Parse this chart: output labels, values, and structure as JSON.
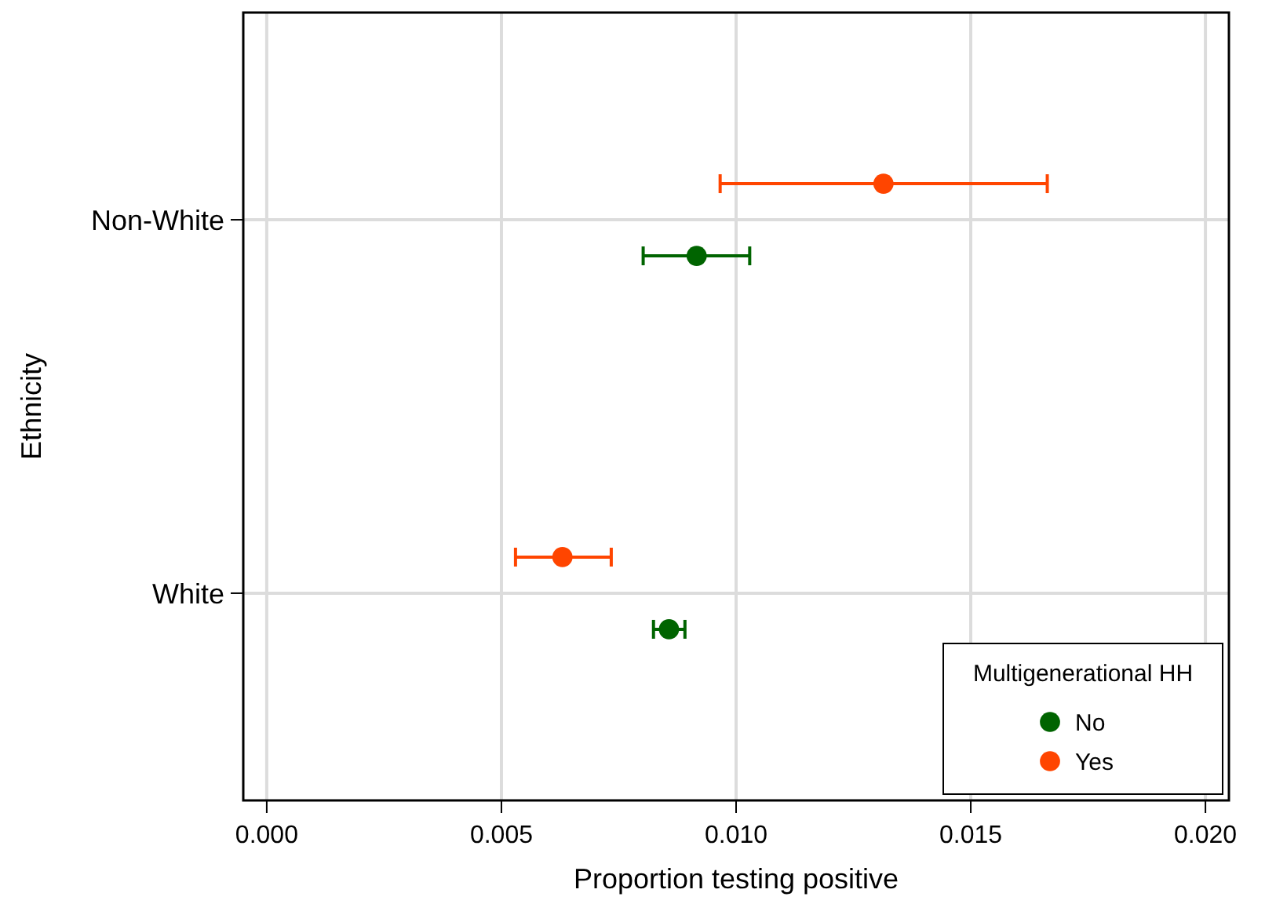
{
  "chart_data": {
    "type": "scatter",
    "orientation": "horizontal",
    "xlabel": "Proportion testing positive",
    "ylabel": "Ethnicity",
    "legend_title": "Multigenerational HH",
    "categories": [
      "Non-White",
      "White"
    ],
    "series": [
      {
        "name": "No",
        "color": "#006400",
        "values": [
          0.00916,
          0.00857
        ],
        "errors": [
          [
            0.00802,
            0.01029
          ],
          [
            0.00824,
            0.00891
          ]
        ]
      },
      {
        "name": "Yes",
        "color": "#ff4500",
        "values": [
          0.01314,
          0.0063
        ],
        "errors": [
          [
            0.00966,
            0.01663
          ],
          [
            0.0053,
            0.00734
          ]
        ]
      }
    ],
    "xlim": [
      -0.0005,
      0.0205
    ],
    "xticks": [
      {
        "value": 0,
        "label": "0.000"
      },
      {
        "value": 0.005,
        "label": "0.005"
      },
      {
        "value": 0.01,
        "label": "0.010"
      },
      {
        "value": 0.015,
        "label": "0.015"
      },
      {
        "value": 0.02,
        "label": "0.020"
      }
    ],
    "grid": true,
    "legend": "bottom right",
    "marker": "circle"
  }
}
